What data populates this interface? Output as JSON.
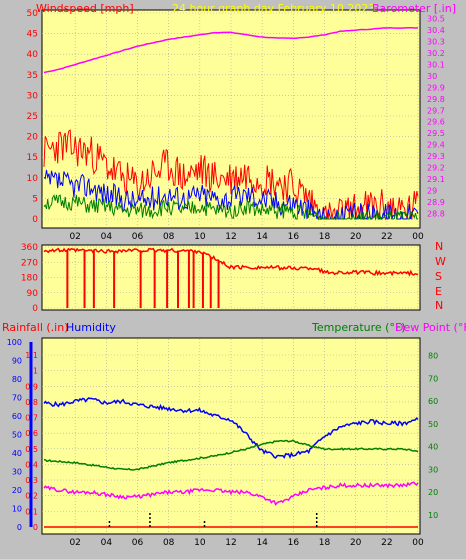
{
  "colors": {
    "background": "#c0c0c0",
    "plot_bg": "#ffff99",
    "grid": "#aaaaaa",
    "red": "#ff0000",
    "blue": "#0000ff",
    "green": "#008000",
    "magenta": "#ff00ff",
    "title": "#ffff00"
  },
  "chart_data": [
    {
      "type": "line",
      "title": "24 hour graph day   February 10 2023",
      "x_ticks": [
        "02",
        "04",
        "06",
        "08",
        "10",
        "12",
        "14",
        "16",
        "18",
        "20",
        "22",
        "00"
      ],
      "left_axis": {
        "label": "Windspeed [mph]",
        "range": [
          0,
          50
        ],
        "ticks": [
          "0",
          "5",
          "10",
          "15",
          "20",
          "25",
          "30",
          "35",
          "40",
          "45",
          "50"
        ]
      },
      "right_axis": {
        "label": "Barometer [.in]",
        "range": [
          28.75,
          30.55
        ],
        "ticks": [
          "28.8",
          "28.9",
          "29",
          "29.1",
          "29.2",
          "29.3",
          "29.4",
          "29.5",
          "29.6",
          "29.7",
          "29.8",
          "29.9",
          "30",
          "30.1",
          "30.2",
          "30.3",
          "30.4",
          "30.5"
        ]
      },
      "series": [
        {
          "name": "Barometer [.in]",
          "color": "#ff00ff",
          "axis": "right",
          "x": [
            0,
            1,
            2,
            3,
            4,
            5,
            6,
            7,
            8,
            9,
            10,
            11,
            12,
            13,
            14,
            15,
            16,
            17,
            18,
            19,
            20,
            21,
            22,
            23,
            24
          ],
          "y": [
            30.03,
            30.06,
            30.1,
            30.14,
            30.18,
            30.22,
            30.26,
            30.29,
            30.32,
            30.34,
            30.36,
            30.38,
            30.38,
            30.36,
            30.34,
            30.33,
            30.33,
            30.34,
            30.36,
            30.39,
            30.4,
            30.41,
            30.42,
            30.42,
            30.42
          ]
        },
        {
          "name": "Gust",
          "color": "#ff0000",
          "axis": "left",
          "x": [
            0,
            1,
            2,
            3,
            4,
            5,
            6,
            7,
            8,
            9,
            10,
            11,
            12,
            13,
            14,
            15,
            16,
            17,
            18,
            19,
            20,
            21,
            22,
            23,
            24
          ],
          "y": [
            16,
            18,
            17,
            16,
            13,
            10,
            8,
            11,
            13,
            10,
            12,
            10,
            10,
            11,
            10,
            9,
            8,
            5,
            0,
            1,
            2,
            3,
            3,
            2,
            3
          ]
        },
        {
          "name": "Average",
          "color": "#0000ff",
          "axis": "left",
          "x": [
            0,
            1,
            2,
            3,
            4,
            5,
            6,
            7,
            8,
            9,
            10,
            11,
            12,
            13,
            14,
            15,
            16,
            17,
            18,
            19,
            20,
            21,
            22,
            23,
            24
          ],
          "y": [
            9,
            9,
            8,
            8,
            6,
            5,
            4,
            5,
            6,
            5,
            6,
            5,
            5,
            6,
            5,
            4,
            4,
            2,
            0,
            0,
            1,
            1,
            1,
            1,
            1
          ]
        },
        {
          "name": "Low",
          "color": "#008000",
          "axis": "left",
          "x": [
            0,
            1,
            2,
            3,
            4,
            5,
            6,
            7,
            8,
            9,
            10,
            11,
            12,
            13,
            14,
            15,
            16,
            17,
            18,
            19,
            20,
            21,
            22,
            23,
            24
          ],
          "y": [
            4,
            4,
            4,
            3,
            3,
            2,
            2,
            2,
            3,
            2,
            3,
            2,
            2,
            3,
            2,
            2,
            2,
            1,
            0,
            0,
            0,
            0,
            0,
            0,
            0
          ]
        }
      ]
    },
    {
      "type": "line",
      "left_axis": {
        "range": [
          0,
          360
        ],
        "ticks": [
          "0",
          "90",
          "180",
          "270",
          "360"
        ]
      },
      "right_axis": {
        "ticks": [
          "N",
          "W",
          "S",
          "E",
          "N"
        ]
      },
      "x_ticks": [
        "02",
        "04",
        "06",
        "08",
        "10",
        "12",
        "14",
        "16",
        "18",
        "20",
        "22",
        "00"
      ],
      "series": [
        {
          "name": "Wind Direction",
          "color": "#ff0000",
          "x": [
            0,
            2,
            4,
            6,
            8,
            10,
            12,
            14,
            16,
            17.5,
            18,
            20,
            22,
            24
          ],
          "y": [
            340,
            340,
            335,
            340,
            340,
            335,
            240,
            240,
            235,
            235,
            210,
            210,
            205,
            205
          ],
          "drops_to": 0,
          "drops_at": [
            1.5,
            2.6,
            3.2,
            4.5,
            6.2,
            7.1,
            7.9,
            8.6,
            9.3,
            9.6,
            10.2,
            10.7,
            11.2
          ]
        }
      ]
    },
    {
      "type": "line",
      "x_ticks": [
        "02",
        "04",
        "06",
        "08",
        "10",
        "12",
        "14",
        "16",
        "18",
        "20",
        "22",
        "00"
      ],
      "left_axis_rain": {
        "label": "Rainfall (.in)",
        "range": [
          0,
          1.1
        ],
        "ticks": [
          "0",
          "0.1",
          "0.2",
          "0.3",
          "0.4",
          "0.5",
          "0.6",
          "0.7",
          "0.8",
          "0.9",
          "1",
          "1.1"
        ]
      },
      "left_axis_humidity": {
        "label": "Humidity",
        "range": [
          0,
          100
        ],
        "ticks": [
          "0",
          "10",
          "20",
          "30",
          "40",
          "50",
          "60",
          "70",
          "80",
          "90",
          "100"
        ]
      },
      "right_axis": {
        "label": "Temperature (°F)",
        "label2": "Dew Point (°F)",
        "range": [
          10,
          86
        ],
        "ticks": [
          "10",
          "20",
          "30",
          "40",
          "50",
          "60",
          "70",
          "80"
        ]
      },
      "series": [
        {
          "name": "Humidity",
          "color": "#0000ff",
          "axis": "humidity",
          "x": [
            0,
            1,
            2,
            3,
            4,
            5,
            6,
            7,
            8,
            9,
            10,
            11,
            12,
            13,
            14,
            15,
            16,
            17,
            18,
            19,
            20,
            21,
            22,
            23,
            24
          ],
          "y": [
            67,
            66,
            68,
            69,
            67,
            68,
            66,
            65,
            64,
            63,
            63,
            60,
            58,
            50,
            41,
            38,
            39,
            41,
            49,
            54,
            56,
            57,
            56,
            56,
            58
          ]
        },
        {
          "name": "Temperature (°F)",
          "color": "#008000",
          "axis": "right",
          "x": [
            0,
            1,
            2,
            3,
            4,
            5,
            6,
            7,
            8,
            9,
            10,
            11,
            12,
            13,
            14,
            15,
            16,
            17,
            18,
            19,
            20,
            21,
            22,
            23,
            24
          ],
          "y": [
            34,
            33.5,
            33,
            32,
            31,
            30,
            30,
            31.5,
            33,
            34,
            35,
            36,
            37.5,
            39,
            41,
            42.5,
            42.5,
            40.5,
            39,
            39,
            39,
            39,
            39,
            39,
            38
          ]
        },
        {
          "name": "Dew Point (°F)",
          "color": "#ff00ff",
          "axis": "right",
          "x": [
            0,
            1,
            2,
            3,
            4,
            5,
            6,
            7,
            8,
            9,
            10,
            11,
            12,
            13,
            14,
            15,
            16,
            17,
            18,
            19,
            20,
            21,
            22,
            23,
            24
          ],
          "y": [
            22,
            21,
            20,
            20,
            19,
            18,
            18,
            19,
            20,
            20,
            21,
            21,
            20,
            20,
            18,
            15,
            18,
            21,
            22,
            23,
            23,
            23,
            23,
            23,
            24
          ]
        },
        {
          "name": "Rainfall",
          "color": "#ff0000",
          "axis": "rain",
          "x": [
            0,
            24
          ],
          "y": [
            0,
            0
          ]
        }
      ]
    }
  ]
}
